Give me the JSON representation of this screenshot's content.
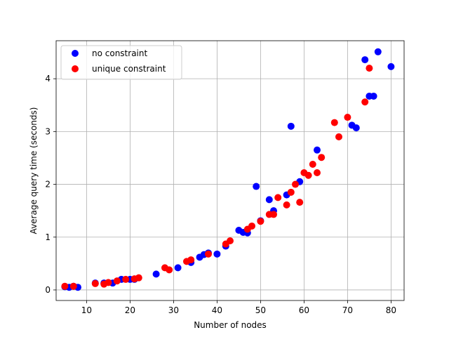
{
  "chart_data": {
    "type": "scatter",
    "title": "",
    "xlabel": "Number of nodes",
    "ylabel": "Average query time (seconds)",
    "xlim": [
      3,
      83
    ],
    "ylim": [
      -0.2,
      4.72
    ],
    "xticks": [
      10,
      20,
      30,
      40,
      50,
      60,
      70,
      80
    ],
    "yticks": [
      0,
      1,
      2,
      3,
      4
    ],
    "grid": true,
    "legend_position": "top-left",
    "series": [
      {
        "name": "no constraint",
        "color": "#0000ff",
        "points": [
          [
            5,
            0.06
          ],
          [
            6,
            0.05
          ],
          [
            7,
            0.07
          ],
          [
            8,
            0.05
          ],
          [
            12,
            0.13
          ],
          [
            14,
            0.13
          ],
          [
            16,
            0.13
          ],
          [
            18,
            0.2
          ],
          [
            20,
            0.2
          ],
          [
            21,
            0.2
          ],
          [
            26,
            0.3
          ],
          [
            31,
            0.42
          ],
          [
            34,
            0.52
          ],
          [
            36,
            0.62
          ],
          [
            37,
            0.67
          ],
          [
            38,
            0.7
          ],
          [
            40,
            0.68
          ],
          [
            42,
            0.83
          ],
          [
            45,
            1.13
          ],
          [
            46,
            1.09
          ],
          [
            47,
            1.08
          ],
          [
            49,
            1.96
          ],
          [
            50,
            1.31
          ],
          [
            52,
            1.71
          ],
          [
            53,
            1.5
          ],
          [
            56,
            1.8
          ],
          [
            57,
            3.1
          ],
          [
            59,
            2.05
          ],
          [
            63,
            2.65
          ],
          [
            71,
            3.12
          ],
          [
            72,
            3.07
          ],
          [
            74,
            4.36
          ],
          [
            75,
            3.67
          ],
          [
            76,
            3.67
          ],
          [
            77,
            4.51
          ],
          [
            80,
            4.23
          ]
        ]
      },
      {
        "name": "unique constraint",
        "color": "#ff0000",
        "points": [
          [
            5,
            0.07
          ],
          [
            7,
            0.07
          ],
          [
            12,
            0.12
          ],
          [
            14,
            0.11
          ],
          [
            15,
            0.14
          ],
          [
            17,
            0.17
          ],
          [
            19,
            0.2
          ],
          [
            21,
            0.21
          ],
          [
            22,
            0.23
          ],
          [
            28,
            0.42
          ],
          [
            29,
            0.38
          ],
          [
            33,
            0.54
          ],
          [
            34,
            0.57
          ],
          [
            38,
            0.68
          ],
          [
            42,
            0.87
          ],
          [
            43,
            0.93
          ],
          [
            47,
            1.15
          ],
          [
            48,
            1.21
          ],
          [
            50,
            1.3
          ],
          [
            52,
            1.43
          ],
          [
            53,
            1.43
          ],
          [
            54,
            1.75
          ],
          [
            56,
            1.61
          ],
          [
            57,
            1.85
          ],
          [
            58,
            2.0
          ],
          [
            59,
            1.66
          ],
          [
            60,
            2.22
          ],
          [
            61,
            2.17
          ],
          [
            62,
            2.38
          ],
          [
            63,
            2.22
          ],
          [
            64,
            2.51
          ],
          [
            67,
            3.17
          ],
          [
            68,
            2.9
          ],
          [
            70,
            3.27
          ],
          [
            74,
            3.56
          ],
          [
            75,
            4.2
          ]
        ]
      }
    ]
  }
}
